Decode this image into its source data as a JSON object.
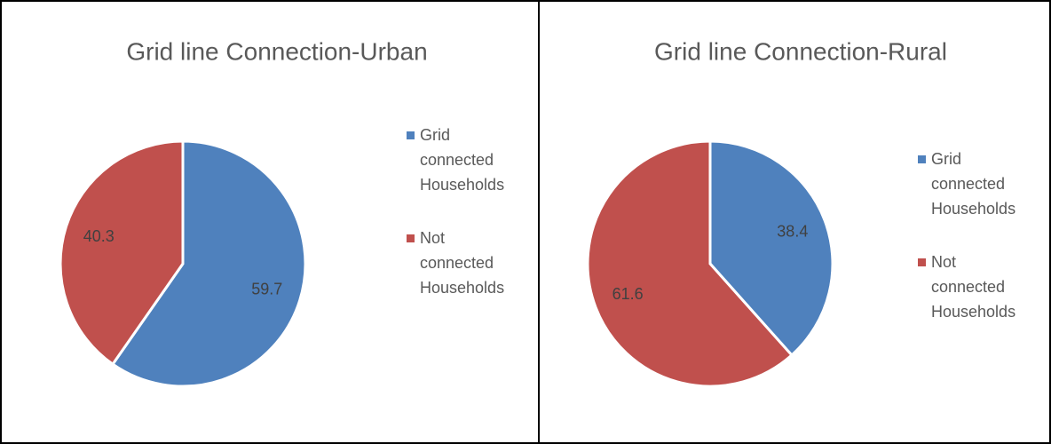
{
  "chart_data": [
    {
      "type": "pie",
      "title": "Grid line Connection-Urban",
      "labels": [
        "Grid connected Households",
        "Not connected Households"
      ],
      "values": [
        59.7,
        40.3
      ],
      "colors": [
        "#4f81bd",
        "#c0504d"
      ],
      "legend": "right"
    },
    {
      "type": "pie",
      "title": "Grid line Connection-Rural",
      "labels": [
        "Grid connected Households",
        "Not connected Households"
      ],
      "values": [
        38.4,
        61.6
      ],
      "colors": [
        "#4f81bd",
        "#c0504d"
      ],
      "legend": "right"
    }
  ]
}
